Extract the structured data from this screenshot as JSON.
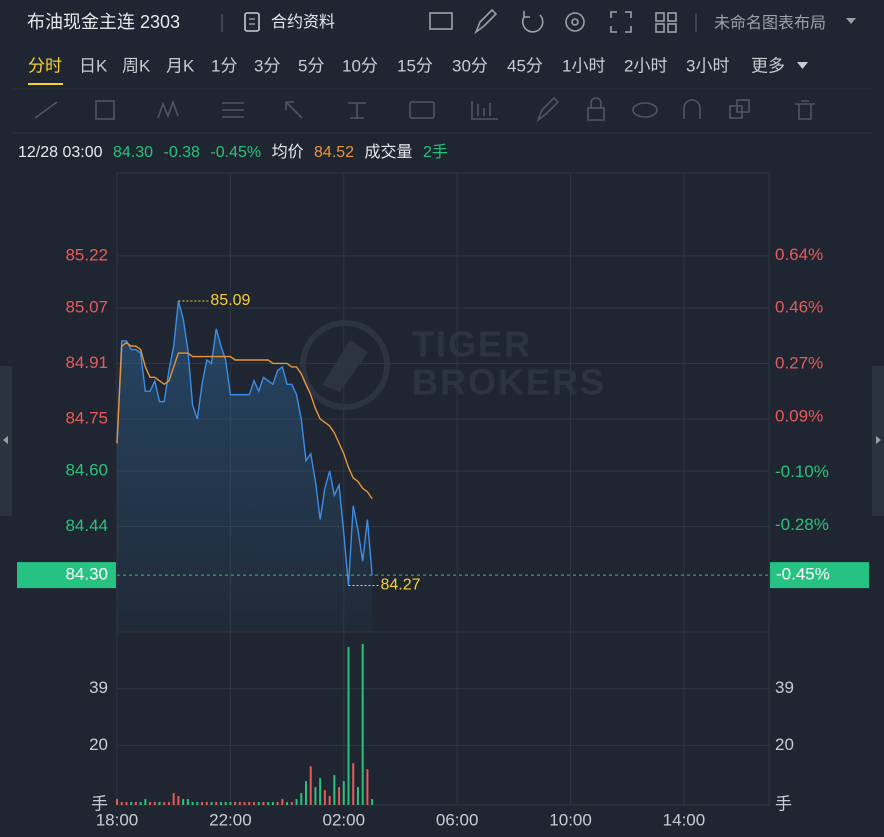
{
  "header": {
    "title": "布油现金主连 2303",
    "contract_info": "合约资料",
    "layout_name": "未命名图表布局"
  },
  "periods": {
    "items": [
      "分时",
      "日K",
      "周K",
      "月K",
      "1分",
      "3分",
      "5分",
      "10分",
      "15分",
      "30分",
      "45分",
      "1小时",
      "2小时",
      "3小时",
      "更多"
    ],
    "selected": 0
  },
  "info": {
    "time": "12/28 03:00",
    "price": "84.30",
    "change": "-0.38",
    "change_pct": "-0.45%",
    "avg_label": "均价",
    "avg": "84.52",
    "volume_label": "成交量",
    "volume": "2手"
  },
  "chart_data": [
    {
      "type": "line",
      "x": [
        0,
        10,
        20,
        30,
        40,
        50,
        60,
        70,
        80,
        90,
        100,
        110,
        120,
        130,
        140,
        150,
        160,
        170,
        180,
        190,
        200,
        210,
        220,
        230,
        240,
        250,
        260,
        270,
        280,
        290,
        300,
        310,
        320,
        330,
        340,
        350,
        360,
        370,
        380,
        390,
        400,
        410,
        420,
        430,
        440,
        450,
        460,
        470,
        480,
        490,
        500,
        510,
        520,
        530,
        540
      ],
      "xlim": [
        0,
        1380
      ],
      "ylim": [
        84.136,
        85.459
      ],
      "yticks": [
        85.22,
        85.07,
        84.91,
        84.75,
        {
          "value": 84.6,
          "label": "84.60"
        },
        84.44
      ],
      "y2lim": [
        -0.642,
        0.92
      ],
      "y2ticks": [
        {
          "value": 0.64,
          "label": "0.64%"
        },
        {
          "value": 0.46,
          "label": "0.46%"
        },
        {
          "value": 0.27,
          "label": "0.27%"
        },
        {
          "value": 0.09,
          "label": "0.09%"
        },
        {
          "value": -0.1,
          "label": "-0.10%"
        },
        {
          "value": -0.28,
          "label": "-0.28%"
        }
      ],
      "series": [
        {
          "color": "#3a8ee6",
          "values": [
            84.68,
            84.975,
            84.975,
            84.95,
            84.95,
            84.94,
            84.83,
            84.83,
            84.86,
            84.8,
            84.8,
            84.89,
            84.96,
            85.09,
            85.04,
            84.95,
            84.79,
            84.75,
            84.85,
            84.92,
            84.91,
            85.01,
            84.96,
            84.92,
            84.82,
            84.82,
            84.82,
            84.82,
            84.82,
            84.86,
            84.83,
            84.87,
            84.86,
            84.85,
            84.89,
            84.9,
            84.85,
            84.85,
            84.82,
            84.75,
            84.63,
            84.65,
            84.57,
            84.46,
            84.55,
            84.6,
            84.53,
            84.56,
            84.42,
            84.27,
            84.5,
            84.43,
            84.34,
            84.46,
            84.3
          ]
        },
        {
          "color": "#e8943a",
          "values": [
            84.68,
            84.96,
            84.97,
            84.96,
            84.96,
            84.95,
            84.9,
            84.87,
            84.87,
            84.86,
            84.85,
            84.86,
            84.9,
            84.94,
            84.94,
            84.94,
            84.93,
            84.93,
            84.93,
            84.93,
            84.93,
            84.93,
            84.93,
            84.93,
            84.93,
            84.92,
            84.92,
            84.92,
            84.92,
            84.92,
            84.92,
            84.92,
            84.92,
            84.91,
            84.91,
            84.91,
            84.91,
            84.9,
            84.9,
            84.88,
            84.85,
            84.82,
            84.78,
            84.75,
            84.74,
            84.73,
            84.71,
            84.68,
            84.65,
            84.61,
            84.58,
            84.57,
            84.55,
            84.54,
            84.52
          ]
        }
      ],
      "annotations": [
        {
          "x": 130,
          "value": 85.09
        },
        {
          "x": 490,
          "value": 84.27
        }
      ],
      "watermark": [
        "TIGER",
        "BROKERS"
      ],
      "up_color": "#e85a5a",
      "down_color": "#2cc17b",
      "annotation_color": "#f5d033",
      "grid": true
    },
    {
      "type": "bar",
      "x": [
        0,
        10,
        20,
        30,
        40,
        50,
        60,
        70,
        80,
        90,
        100,
        110,
        120,
        130,
        140,
        150,
        160,
        170,
        180,
        190,
        200,
        210,
        220,
        230,
        240,
        250,
        260,
        270,
        280,
        290,
        300,
        310,
        320,
        330,
        340,
        350,
        360,
        370,
        380,
        390,
        400,
        410,
        420,
        430,
        440,
        450,
        460,
        470,
        480,
        490,
        500,
        510,
        520,
        530,
        540
      ],
      "values": [
        2,
        1,
        1,
        1,
        1,
        1,
        2,
        1,
        1,
        1,
        1,
        1,
        4,
        3,
        2,
        2,
        1,
        1,
        1,
        1,
        1,
        1,
        1,
        1,
        1,
        1,
        1,
        1,
        1,
        1,
        1,
        1,
        1,
        1,
        1,
        2,
        1,
        1,
        2,
        4,
        8,
        13,
        6,
        9,
        5,
        3,
        10,
        6,
        8,
        53,
        14,
        6,
        54,
        12,
        2
      ],
      "xlim": [
        0,
        1380
      ],
      "xticks": [
        {
          "value": 0,
          "label": "18:00"
        },
        {
          "value": 240,
          "label": "22:00"
        },
        {
          "value": 480,
          "label": "02:00"
        },
        {
          "value": 720,
          "label": "06:00"
        },
        {
          "value": 960,
          "label": "10:00"
        },
        {
          "value": 1200,
          "label": "14:00"
        }
      ],
      "ylim": [
        0,
        58
      ],
      "yticks": [
        {
          "value": 0,
          "label": "手"
        },
        20,
        39
      ],
      "grid": true
    }
  ]
}
